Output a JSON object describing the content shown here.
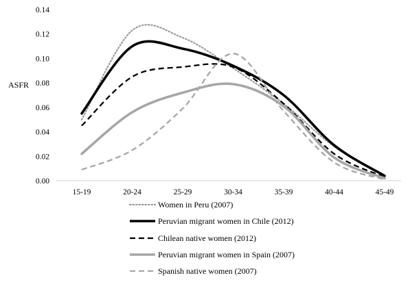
{
  "chart_data": {
    "type": "line",
    "ylabel": "ASFR",
    "xlabel": "",
    "categories": [
      "15-19",
      "20-24",
      "25-29",
      "30-34",
      "35-39",
      "40-44",
      "45-49"
    ],
    "y_ticks": [
      "0.00",
      "0.02",
      "0.04",
      "0.06",
      "0.08",
      "0.10",
      "0.12",
      "0.14"
    ],
    "ylim": [
      0,
      0.14
    ],
    "grid": false,
    "legend_position": "bottom",
    "series": [
      {
        "name": "Women in Peru (2007)",
        "values": [
          0.05,
          0.123,
          0.117,
          0.092,
          0.063,
          0.028,
          0.004
        ],
        "color": "#999999",
        "style": "dotted"
      },
      {
        "name": "Peruvian migrant women in Chile (2012)",
        "values": [
          0.055,
          0.11,
          0.108,
          0.094,
          0.07,
          0.029,
          0.004
        ],
        "color": "#000000",
        "style": "solid-thick"
      },
      {
        "name": "Chilean native women (2012)",
        "values": [
          0.045,
          0.085,
          0.093,
          0.093,
          0.063,
          0.022,
          0.003
        ],
        "color": "#000000",
        "style": "dashed"
      },
      {
        "name": "Peruvian migrant women in Spain (2007)",
        "values": [
          0.022,
          0.056,
          0.072,
          0.079,
          0.061,
          0.019,
          0.002
        ],
        "color": "#a6a6a6",
        "style": "solid-thick"
      },
      {
        "name": "Spanish native women (2007)",
        "values": [
          0.009,
          0.025,
          0.059,
          0.104,
          0.057,
          0.015,
          0.001
        ],
        "color": "#a6a6a6",
        "style": "dashed"
      }
    ]
  }
}
